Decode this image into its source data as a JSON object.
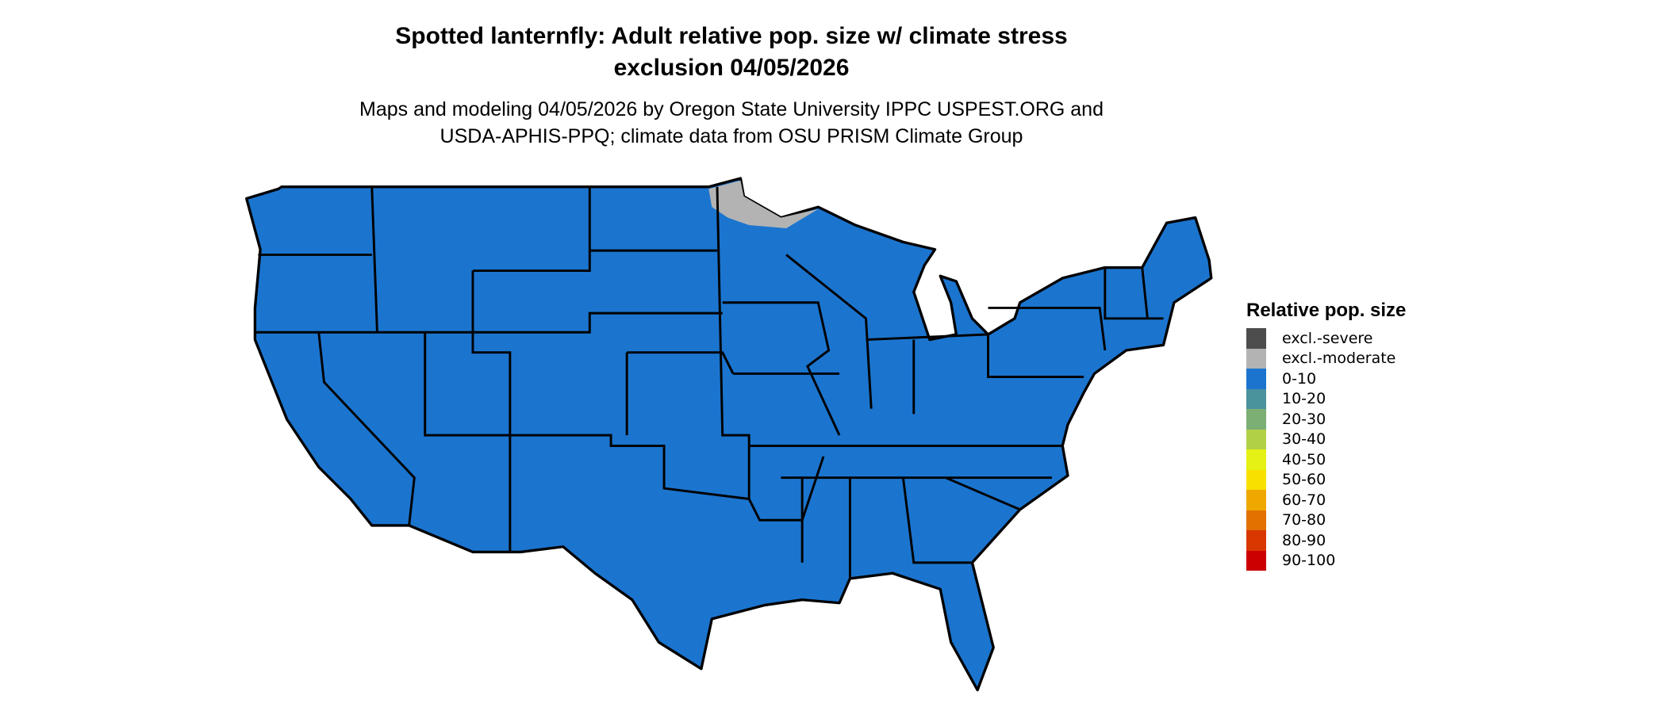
{
  "title": {
    "line1": "Spotted lanternfly: Adult relative pop. size w/ climate stress",
    "line2": "exclusion 04/05/2026"
  },
  "subtitle": {
    "line1": "Maps and modeling 04/05/2026 by Oregon State University IPPC USPEST.ORG and",
    "line2": "USDA-APHIS-PPQ; climate data from OSU PRISM Climate Group"
  },
  "map": {
    "region": "Contiguous United States",
    "dominant_class": "0-10",
    "dominant_color": "#1b75cf",
    "excluded_areas": [
      {
        "area": "northern Minnesota",
        "class": "excl.-moderate",
        "color": "#b3b3b3"
      }
    ]
  },
  "legend": {
    "title": "Relative pop. size",
    "items": [
      {
        "label": "excl.-severe",
        "color": "#4d4d4d"
      },
      {
        "label": "excl.-moderate",
        "color": "#b3b3b3"
      },
      {
        "label": "0-10",
        "color": "#1b75cf"
      },
      {
        "label": "10-20",
        "color": "#4a929c"
      },
      {
        "label": "20-30",
        "color": "#7baf74"
      },
      {
        "label": "30-40",
        "color": "#b2d046"
      },
      {
        "label": "40-50",
        "color": "#e5f014"
      },
      {
        "label": "50-60",
        "color": "#f8e000"
      },
      {
        "label": "60-70",
        "color": "#efa800"
      },
      {
        "label": "70-80",
        "color": "#e27100"
      },
      {
        "label": "80-90",
        "color": "#d93700"
      },
      {
        "label": "90-100",
        "color": "#cc0000"
      }
    ]
  }
}
